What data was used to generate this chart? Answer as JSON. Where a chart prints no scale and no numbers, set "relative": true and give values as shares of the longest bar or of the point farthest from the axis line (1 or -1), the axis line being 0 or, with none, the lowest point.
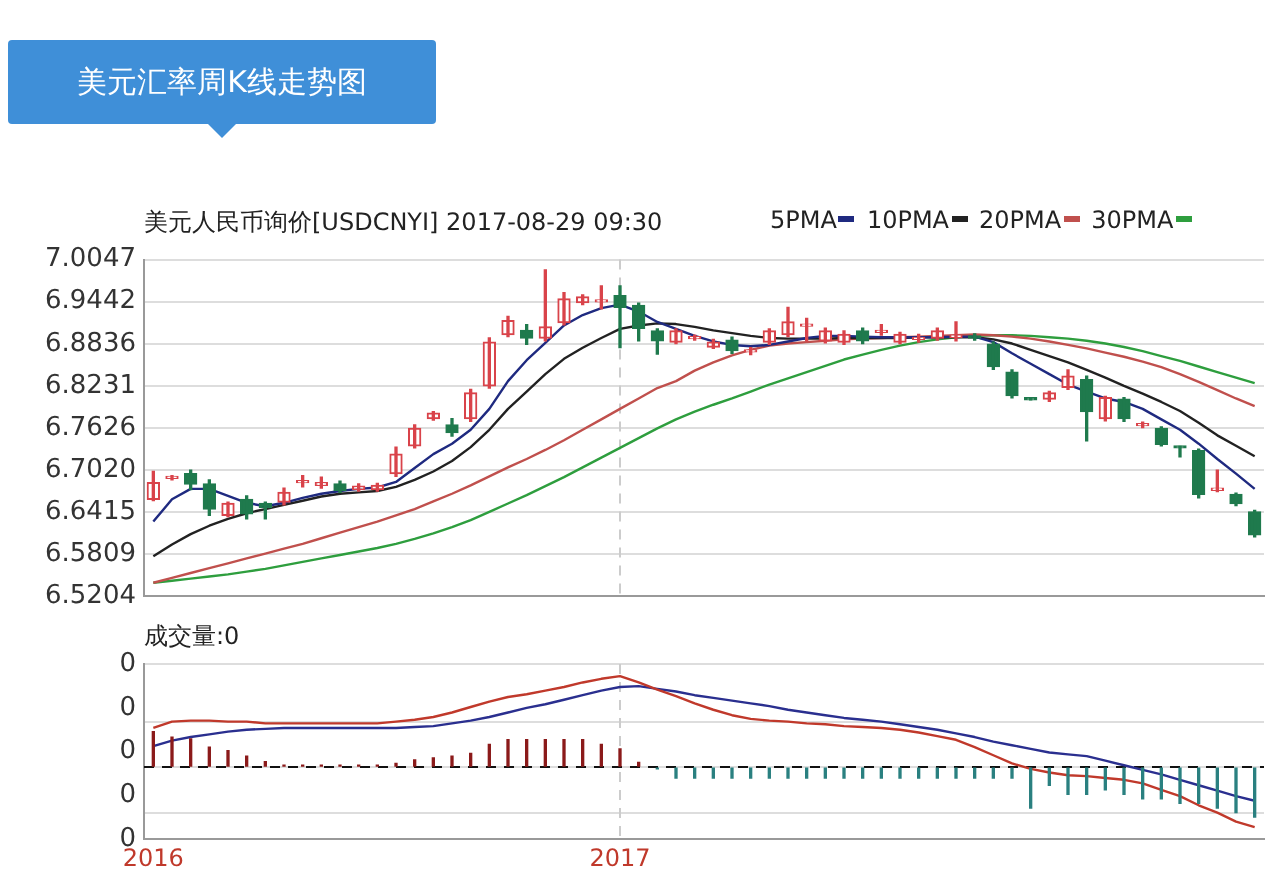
{
  "chart_data": [
    {
      "type": "candlestick",
      "title": "美元汇率周K线走势图",
      "subtitle": "美元人民币询价[USDCNYI] 2017-08-29 09:30",
      "categories": [
        "2016",
        null,
        null,
        null,
        null,
        null,
        null,
        null,
        null,
        null,
        null,
        null,
        null,
        null,
        null,
        null,
        null,
        null,
        null,
        null,
        null,
        null,
        null,
        null,
        null,
        "2017",
        null,
        null,
        null,
        null,
        null,
        null,
        null,
        null,
        null,
        null,
        null,
        null,
        null,
        null,
        null,
        null,
        null,
        null,
        null,
        null,
        null,
        null,
        null,
        null,
        null,
        null,
        null,
        null,
        null,
        null,
        null,
        null,
        null,
        null
      ],
      "ohlc": [
        [
          6.66,
          6.7,
          6.658,
          6.684
        ],
        [
          6.69,
          6.694,
          6.688,
          6.692
        ],
        [
          6.697,
          6.702,
          6.674,
          6.682
        ],
        [
          6.682,
          6.688,
          6.637,
          6.646
        ],
        [
          6.637,
          6.656,
          6.635,
          6.654
        ],
        [
          6.66,
          6.665,
          6.632,
          6.639
        ],
        [
          6.654,
          6.656,
          6.632,
          6.648
        ],
        [
          6.656,
          6.676,
          6.652,
          6.67
        ],
        [
          6.684,
          6.694,
          6.678,
          6.686
        ],
        [
          6.68,
          6.692,
          6.676,
          6.684
        ],
        [
          6.682,
          6.686,
          6.67,
          6.673
        ],
        [
          6.674,
          6.682,
          6.672,
          6.679
        ],
        [
          6.674,
          6.683,
          6.672,
          6.68
        ],
        [
          6.697,
          6.735,
          6.693,
          6.725
        ],
        [
          6.737,
          6.767,
          6.734,
          6.762
        ],
        [
          6.776,
          6.786,
          6.774,
          6.784
        ],
        [
          6.767,
          6.776,
          6.751,
          6.756
        ],
        [
          6.776,
          6.818,
          6.772,
          6.813
        ],
        [
          6.823,
          6.892,
          6.82,
          6.886
        ],
        [
          6.897,
          6.923,
          6.894,
          6.917
        ],
        [
          6.903,
          6.911,
          6.883,
          6.892
        ],
        [
          6.892,
          6.99,
          6.888,
          6.908
        ],
        [
          6.914,
          6.957,
          6.911,
          6.948
        ],
        [
          6.943,
          6.954,
          6.94,
          6.951
        ],
        [
          6.944,
          6.967,
          6.934,
          6.946
        ],
        [
          6.953,
          6.967,
          6.878,
          6.936
        ],
        [
          6.939,
          6.942,
          6.888,
          6.906
        ],
        [
          6.902,
          6.905,
          6.869,
          6.888
        ],
        [
          6.886,
          6.905,
          6.884,
          6.902
        ],
        [
          6.891,
          6.896,
          6.889,
          6.893
        ],
        [
          6.879,
          6.89,
          6.877,
          6.886
        ],
        [
          6.889,
          6.893,
          6.87,
          6.874
        ],
        [
          6.872,
          6.878,
          6.868,
          6.874
        ],
        [
          6.886,
          6.905,
          6.883,
          6.902
        ],
        [
          6.897,
          6.936,
          6.894,
          6.915
        ],
        [
          6.909,
          6.92,
          6.888,
          6.911
        ],
        [
          6.888,
          6.906,
          6.885,
          6.902
        ],
        [
          6.886,
          6.902,
          6.883,
          6.897
        ],
        [
          6.902,
          6.906,
          6.884,
          6.888
        ],
        [
          6.9,
          6.911,
          6.896,
          6.902
        ],
        [
          6.886,
          6.9,
          6.884,
          6.897
        ],
        [
          6.89,
          6.897,
          6.886,
          6.892
        ],
        [
          6.892,
          6.906,
          6.889,
          6.902
        ],
        [
          6.893,
          6.915,
          6.888,
          6.895
        ],
        [
          6.894,
          6.898,
          6.889,
          6.892
        ],
        [
          6.883,
          6.886,
          6.847,
          6.851
        ],
        [
          6.843,
          6.846,
          6.806,
          6.809
        ],
        [
          6.806,
          6.806,
          6.803,
          6.803
        ],
        [
          6.804,
          6.815,
          6.801,
          6.813
        ],
        [
          6.821,
          6.846,
          6.818,
          6.837
        ],
        [
          6.832,
          6.837,
          6.744,
          6.786
        ],
        [
          6.776,
          6.808,
          6.773,
          6.806
        ],
        [
          6.804,
          6.806,
          6.772,
          6.776
        ],
        [
          6.766,
          6.771,
          6.763,
          6.768
        ],
        [
          6.762,
          6.764,
          6.737,
          6.739
        ],
        [
          6.735,
          6.736,
          6.721,
          6.734
        ],
        [
          6.73,
          6.732,
          6.662,
          6.667
        ],
        [
          6.673,
          6.702,
          6.671,
          6.674
        ],
        [
          6.667,
          6.669,
          6.651,
          6.654
        ],
        [
          6.642,
          6.644,
          6.606,
          6.609
        ]
      ],
      "colors": [
        "#d9434a",
        "#d9434a",
        "#1f7a4d",
        "#1f7a4d",
        "#d9434a",
        "#1f7a4d",
        "#1f7a4d",
        "#d9434a",
        "#d9434a",
        "#d9434a",
        "#1f7a4d",
        "#d9434a",
        "#d9434a",
        "#d9434a",
        "#d9434a",
        "#d9434a",
        "#1f7a4d",
        "#d9434a",
        "#d9434a",
        "#d9434a",
        "#1f7a4d",
        "#d9434a",
        "#d9434a",
        "#d9434a",
        "#d9434a",
        "#1f7a4d",
        "#1f7a4d",
        "#1f7a4d",
        "#d9434a",
        "#d9434a",
        "#d9434a",
        "#1f7a4d",
        "#d9434a",
        "#d9434a",
        "#d9434a",
        "#d9434a",
        "#d9434a",
        "#d9434a",
        "#1f7a4d",
        "#d9434a",
        "#d9434a",
        "#d9434a",
        "#d9434a",
        "#d9434a",
        "#1f7a4d",
        "#1f7a4d",
        "#1f7a4d",
        "#1f7a4d",
        "#d9434a",
        "#d9434a",
        "#1f7a4d",
        "#d9434a",
        "#1f7a4d",
        "#d9434a",
        "#1f7a4d",
        "#1f7a4d",
        "#1f7a4d",
        "#d9434a",
        "#1f7a4d",
        "#1f7a4d"
      ],
      "series": [
        {
          "name": "5PMA",
          "type": "line",
          "color": "#1f2a80",
          "values": [
            6.628,
            6.66,
            6.675,
            6.675,
            6.665,
            6.655,
            6.65,
            6.655,
            6.662,
            6.668,
            6.672,
            6.675,
            6.677,
            6.685,
            6.705,
            6.725,
            6.74,
            6.76,
            6.79,
            6.83,
            6.86,
            6.885,
            6.91,
            6.925,
            6.935,
            6.94,
            6.93,
            6.915,
            6.905,
            6.895,
            6.887,
            6.882,
            6.88,
            6.882,
            6.887,
            6.892,
            6.895,
            6.895,
            6.894,
            6.893,
            6.893,
            6.893,
            6.893,
            6.894,
            6.894,
            6.886,
            6.87,
            6.855,
            6.84,
            6.825,
            6.815,
            6.805,
            6.8,
            6.79,
            6.775,
            6.76,
            6.74,
            6.718,
            6.697,
            6.675
          ]
        },
        {
          "name": "10PMA",
          "type": "line",
          "color": "#222222",
          "values": [
            6.578,
            6.595,
            6.61,
            6.622,
            6.632,
            6.64,
            6.646,
            6.652,
            6.658,
            6.664,
            6.668,
            6.67,
            6.672,
            6.678,
            6.688,
            6.7,
            6.715,
            6.735,
            6.76,
            6.79,
            6.815,
            6.84,
            6.862,
            6.878,
            6.892,
            6.905,
            6.91,
            6.913,
            6.912,
            6.908,
            6.903,
            6.899,
            6.895,
            6.892,
            6.891,
            6.891,
            6.891,
            6.892,
            6.892,
            6.892,
            6.892,
            6.893,
            6.893,
            6.893,
            6.893,
            6.89,
            6.884,
            6.875,
            6.866,
            6.857,
            6.846,
            6.835,
            6.823,
            6.812,
            6.8,
            6.787,
            6.77,
            6.752,
            6.737,
            6.722
          ]
        },
        {
          "name": "20PMA",
          "type": "line",
          "color": "#c0504d",
          "values": [
            6.54,
            6.547,
            6.554,
            6.561,
            6.568,
            6.575,
            6.582,
            6.589,
            6.596,
            6.604,
            6.612,
            6.62,
            6.628,
            6.637,
            6.646,
            6.657,
            6.668,
            6.68,
            6.693,
            6.706,
            6.718,
            6.731,
            6.745,
            6.76,
            6.775,
            6.79,
            6.805,
            6.82,
            6.83,
            6.845,
            6.857,
            6.867,
            6.875,
            6.881,
            6.884,
            6.886,
            6.888,
            6.89,
            6.891,
            6.892,
            6.893,
            6.894,
            6.895,
            6.896,
            6.897,
            6.896,
            6.894,
            6.891,
            6.887,
            6.882,
            6.877,
            6.871,
            6.865,
            6.858,
            6.85,
            6.84,
            6.829,
            6.817,
            6.805,
            6.794
          ]
        },
        {
          "name": "30PMA",
          "type": "line",
          "color": "#2e9e3e",
          "values": [
            6.54,
            6.543,
            6.546,
            6.549,
            6.552,
            6.556,
            6.56,
            6.565,
            6.57,
            6.575,
            6.58,
            6.585,
            6.59,
            6.596,
            6.603,
            6.611,
            6.62,
            6.63,
            6.642,
            6.654,
            6.666,
            6.679,
            6.692,
            6.706,
            6.72,
            6.734,
            6.748,
            6.762,
            6.775,
            6.786,
            6.796,
            6.805,
            6.815,
            6.825,
            6.834,
            6.843,
            6.852,
            6.861,
            6.868,
            6.875,
            6.881,
            6.886,
            6.89,
            6.893,
            6.895,
            6.896,
            6.896,
            6.895,
            6.893,
            6.891,
            6.888,
            6.884,
            6.879,
            6.873,
            6.866,
            6.859,
            6.851,
            6.843,
            6.835,
            6.827
          ]
        }
      ],
      "ylim": [
        6.5204,
        7.0047
      ],
      "yticks": [
        6.5204,
        6.5809,
        6.6415,
        {
          "value": 6.702,
          "label": "6.7020"
        },
        6.7626,
        6.8231,
        6.8836,
        6.9442,
        7.0047
      ],
      "grid": "y",
      "legend": "top right",
      "tick_labels": "y",
      "ref_lines": [
        {
          "axis": "x",
          "value": "2017",
          "color": "#cccccc",
          "line_style": "dashed"
        }
      ]
    },
    {
      "type": "bar",
      "title": "成交量:0",
      "relative": true,
      "categories": [
        "2016",
        null,
        null,
        null,
        null,
        null,
        null,
        null,
        null,
        null,
        null,
        null,
        null,
        null,
        null,
        null,
        null,
        null,
        null,
        null,
        null,
        null,
        null,
        null,
        null,
        "2017",
        null,
        null,
        null,
        null,
        null,
        null,
        null,
        null,
        null,
        null,
        null,
        null,
        null,
        null,
        null,
        null,
        null,
        null,
        null,
        null,
        null,
        null,
        null,
        null,
        null,
        null,
        null,
        null,
        null,
        null,
        null,
        null,
        null,
        null
      ],
      "series": [
        {
          "type": "bar",
          "values": [
            0.39,
            0.33,
            0.31,
            0.22,
            0.18,
            0.12,
            0.06,
            0.02,
            0.02,
            0.02,
            0.02,
            0.02,
            0.02,
            0.04,
            0.08,
            0.1,
            0.12,
            0.15,
            0.25,
            0.3,
            0.3,
            0.3,
            0.3,
            0.3,
            0.25,
            0.2,
            0.05,
            -0.02,
            -0.12,
            -0.12,
            -0.12,
            -0.12,
            -0.12,
            -0.12,
            -0.12,
            -0.12,
            -0.12,
            -0.12,
            -0.12,
            -0.12,
            -0.12,
            -0.12,
            -0.12,
            -0.12,
            -0.12,
            -0.12,
            -0.12,
            -0.45,
            -0.2,
            -0.3,
            -0.3,
            -0.25,
            -0.3,
            -0.35,
            -0.35,
            -0.4,
            -0.4,
            -0.45,
            -0.5,
            -0.55
          ],
          "colors": [
            "#8b1a1a",
            "#8b1a1a",
            "#8b1a1a",
            "#8b1a1a",
            "#8b1a1a",
            "#8b1a1a",
            "#8b1a1a",
            "#8b1a1a",
            "#8b1a1a",
            "#8b1a1a",
            "#8b1a1a",
            "#8b1a1a",
            "#8b1a1a",
            "#8b1a1a",
            "#8b1a1a",
            "#8b1a1a",
            "#8b1a1a",
            "#8b1a1a",
            "#8b1a1a",
            "#8b1a1a",
            "#8b1a1a",
            "#8b1a1a",
            "#8b1a1a",
            "#8b1a1a",
            "#8b1a1a",
            "#8b1a1a",
            "#8b1a1a",
            "#2a8080",
            "#2a8080",
            "#2a8080",
            "#2a8080",
            "#2a8080",
            "#2a8080",
            "#2a8080",
            "#2a8080",
            "#2a8080",
            "#2a8080",
            "#2a8080",
            "#2a8080",
            "#2a8080",
            "#2a8080",
            "#2a8080",
            "#2a8080",
            "#2a8080",
            "#2a8080",
            "#2a8080",
            "#2a8080",
            "#2a8080",
            "#2a8080",
            "#2a8080",
            "#2a8080",
            "#2a8080",
            "#2a8080",
            "#2a8080",
            "#2a8080",
            "#2a8080",
            "#2a8080",
            "#2a8080",
            "#2a8080",
            "#2a8080"
          ]
        },
        {
          "type": "line",
          "color": "#c0392b",
          "values": [
            0.43,
            0.5,
            0.51,
            0.51,
            0.5,
            0.5,
            0.48,
            0.48,
            0.48,
            0.48,
            0.48,
            0.48,
            0.48,
            0.5,
            0.52,
            0.55,
            0.6,
            0.66,
            0.72,
            0.77,
            0.8,
            0.84,
            0.88,
            0.93,
            0.97,
            1,
            0.93,
            0.85,
            0.78,
            0.7,
            0.63,
            0.57,
            0.53,
            0.51,
            0.5,
            0.48,
            0.47,
            0.45,
            0.44,
            0.43,
            0.41,
            0.38,
            0.34,
            0.3,
            0.22,
            0.13,
            0.04,
            -0.02,
            -0.06,
            -0.09,
            -0.1,
            -0.12,
            -0.14,
            -0.18,
            -0.25,
            -0.32,
            -0.42,
            -0.5,
            -0.6,
            -0.66
          ]
        },
        {
          "type": "line",
          "color": "#2a2f8f",
          "values": [
            0.23,
            0.29,
            0.33,
            0.36,
            0.39,
            0.41,
            0.42,
            0.43,
            0.43,
            0.43,
            0.43,
            0.43,
            0.43,
            0.43,
            0.44,
            0.45,
            0.48,
            0.51,
            0.55,
            0.6,
            0.65,
            0.69,
            0.74,
            0.79,
            0.84,
            0.88,
            0.89,
            0.86,
            0.83,
            0.79,
            0.76,
            0.73,
            0.7,
            0.67,
            0.63,
            0.6,
            0.57,
            0.54,
            0.52,
            0.5,
            0.47,
            0.44,
            0.41,
            0.37,
            0.33,
            0.28,
            0.24,
            0.2,
            0.16,
            0.14,
            0.12,
            0.07,
            0.02,
            -0.03,
            -0.08,
            -0.14,
            -0.2,
            -0.26,
            -0.32,
            -0.37
          ]
        }
      ],
      "annotations": [
        "0",
        "0",
        "0",
        "0",
        "0"
      ],
      "grid": "y",
      "ref_lines": [
        {
          "axis": "x",
          "value": "2017",
          "color": "#cccccc",
          "line_style": "dashed"
        },
        {
          "axis": "y",
          "value": 0,
          "color": "#111111",
          "line_style": "dashed"
        }
      ]
    }
  ]
}
